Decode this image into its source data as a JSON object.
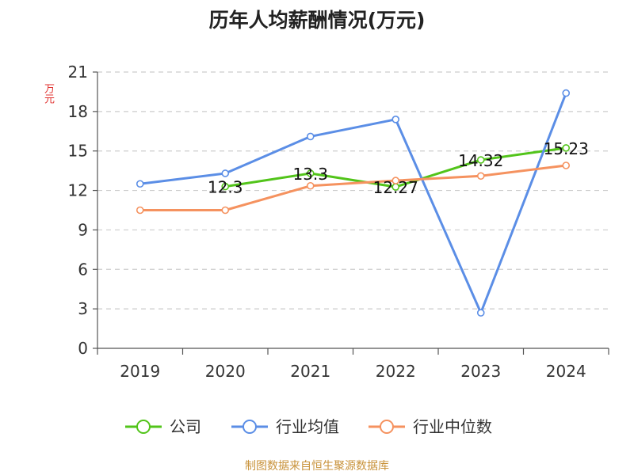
{
  "chart_data": {
    "type": "line",
    "title": "历年人均薪酬情况(万元)",
    "ylabel": "万元",
    "xlabel": "",
    "categories": [
      "2019",
      "2020",
      "2021",
      "2022",
      "2023",
      "2024"
    ],
    "ylim": [
      0,
      21
    ],
    "yticks": [
      0,
      3,
      6,
      9,
      12,
      15,
      18,
      21
    ],
    "grid": true,
    "legend_position": "bottom",
    "series": [
      {
        "name": "公司",
        "color": "#52c41a",
        "values": [
          null,
          12.3,
          13.3,
          12.27,
          14.32,
          15.23
        ],
        "show_labels": true
      },
      {
        "name": "行业均值",
        "color": "#5b8ee6",
        "values": [
          12.5,
          13.3,
          16.1,
          17.4,
          2.7,
          19.4
        ],
        "show_labels": false
      },
      {
        "name": "行业中位数",
        "color": "#f5925f",
        "values": [
          10.5,
          10.5,
          12.35,
          12.75,
          13.1,
          13.9
        ],
        "show_labels": false
      }
    ]
  },
  "footer": "制图数据来自恒生聚源数据库"
}
